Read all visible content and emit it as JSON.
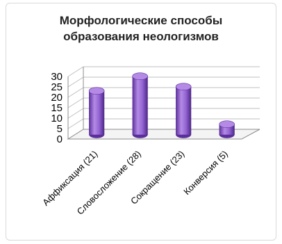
{
  "chart_data": {
    "type": "bar",
    "title_lines": [
      "Морфологические способы",
      "образования неологизмов"
    ],
    "categories": [
      "Аффиксация (21)",
      "Словосложение (28)",
      "Сокращение (23)",
      "Конверсия (5)"
    ],
    "values": [
      21,
      28,
      23,
      5
    ],
    "ylim": [
      0,
      30
    ],
    "yticks": [
      "0",
      "5",
      "10",
      "15",
      "20",
      "25",
      "30"
    ],
    "grid": true,
    "legend": "none",
    "colors": {
      "bar": "#8b5cc8",
      "bar_dark": "#5b2f9a",
      "bar_light": "#b48ae6"
    }
  }
}
